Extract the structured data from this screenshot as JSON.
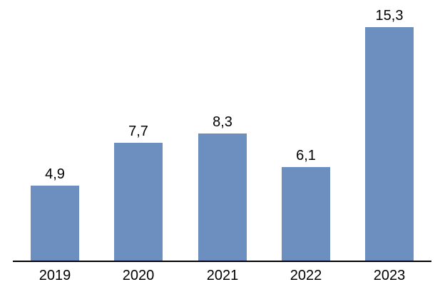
{
  "chart_data": {
    "type": "bar",
    "title": "",
    "xlabel": "",
    "ylabel": "",
    "categories": [
      "2019",
      "2020",
      "2021",
      "2022",
      "2023"
    ],
    "values": [
      4.9,
      7.7,
      8.3,
      6.1,
      15.3
    ],
    "value_labels": [
      "4,9",
      "7,7",
      "8,3",
      "6,1",
      "15,3"
    ],
    "series_name": "",
    "ylim": [
      0,
      16
    ],
    "grid": false,
    "legend_position": "none",
    "decimal_separator": ",",
    "colors": {
      "bar_fill": "#6D8FBF",
      "axis": "#000000",
      "label_text": "#000000",
      "background": "#FFFFFF"
    }
  }
}
